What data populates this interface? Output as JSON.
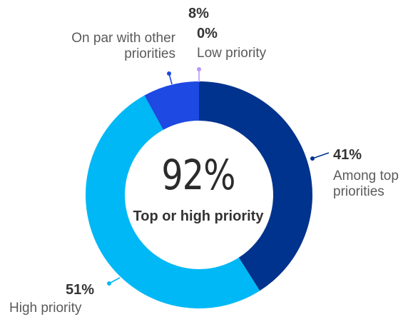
{
  "chart_data": {
    "type": "pie",
    "donut": true,
    "center_value": "92%",
    "center_label": "Top or high priority",
    "slices": [
      {
        "label": "Among top priorities",
        "value": 41,
        "value_text": "41%",
        "color": "#00338D"
      },
      {
        "label": "High priority",
        "value": 51,
        "value_text": "51%",
        "color": "#00B8F5"
      },
      {
        "label": "On par with other priorities",
        "value": 8,
        "value_text": "8%",
        "color": "#1E49E2"
      },
      {
        "label": "Low priority",
        "value": 0,
        "value_text": "0%",
        "color": "#B497FF"
      }
    ]
  }
}
